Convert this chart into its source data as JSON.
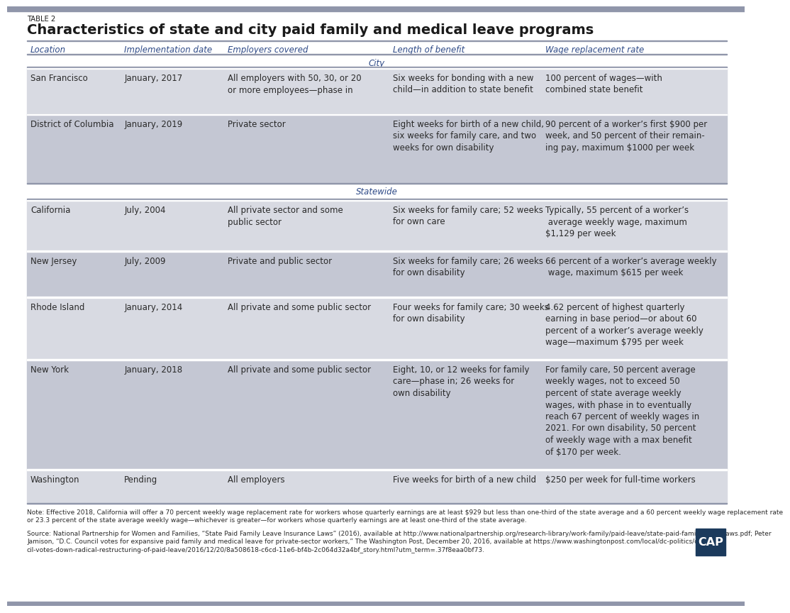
{
  "table_label": "TABLE 2",
  "title": "Characteristics of state and city paid family and medical leave programs",
  "columns": [
    "Location",
    "Implementation date",
    "Employers covered",
    "Length of benefit",
    "Wage replacement rate"
  ],
  "header_color": "#2E4A87",
  "section_city_label": "City",
  "section_statewide_label": "Statewide",
  "section_label_color": "#2E4A87",
  "rows": [
    {
      "section": "City",
      "location": "San Francisco",
      "date": "January, 2017",
      "employers": "All employers with 50, 30, or 20\nor more employees—phase in",
      "length": "Six weeks for bonding with a new\nchild—in addition to state benefit",
      "wage": "100 percent of wages—with\ncombined state benefit",
      "bg": "#D8DAE2"
    },
    {
      "section": "City",
      "location": "District of Columbia",
      "date": "January, 2019",
      "employers": "Private sector",
      "length": "Eight weeks for birth of a new child,\nsix weeks for family care, and two\nweeks for own disability",
      "wage": "90 percent of a worker’s first $900 per\nweek, and 50 percent of their remain-\ning pay, maximum $1000 per week",
      "bg": "#C4C7D3"
    },
    {
      "section": "Statewide",
      "location": "California",
      "date": "July, 2004",
      "employers": "All private sector and some\npublic sector",
      "length": "Six weeks for family care; 52 weeks\nfor own care",
      "wage": "Typically, 55 percent of a worker’s\n average weekly wage, maximum\n$1,129 per week",
      "bg": "#D8DAE2"
    },
    {
      "section": "Statewide",
      "location": "New Jersey",
      "date": "July, 2009",
      "employers": "Private and public sector",
      "length": "Six weeks for family care; 26 weeks\nfor own disability",
      "wage": "66 percent of a worker’s average weekly\n wage, maximum $615 per week",
      "bg": "#C4C7D3"
    },
    {
      "section": "Statewide",
      "location": "Rhode Island",
      "date": "January, 2014",
      "employers": "All private and some public sector",
      "length": "Four weeks for family care; 30 weeks\nfor own disability",
      "wage": "4.62 percent of highest quarterly\nearning in base period—or about 60\npercent of a worker’s average weekly\nwage—maximum $795 per week",
      "bg": "#D8DAE2"
    },
    {
      "section": "Statewide",
      "location": "New York",
      "date": "January, 2018",
      "employers": "All private and some public sector",
      "length": "Eight, 10, or 12 weeks for family\ncare—phase in; 26 weeks for\nown disability",
      "wage": "For family care, 50 percent average\nweekly wages, not to exceed 50\npercent of state average weekly\nwages, with phase in to eventually\nreach 67 percent of weekly wages in\n2021. For own disability, 50 percent\nof weekly wage with a max benefit\nof $170 per week.",
      "bg": "#C4C7D3"
    },
    {
      "section": "Statewide",
      "location": "Washington",
      "date": "Pending",
      "employers": "All employers",
      "length": "Five weeks for birth of a new child",
      "wage": "$250 per week for full-time workers",
      "bg": "#D8DAE2"
    }
  ],
  "note_text": "Note: Effective 2018, California will offer a 70 percent weekly wage replacement rate for workers whose quarterly earnings are at least $929 but less than one-third of the state average and a 60 percent weekly wage replacement rate\nor 23.3 percent of the state average weekly wage—whichever is greater—for workers whose quarterly earnings are at least one-third of the state average.",
  "source_text": "Source: National Partnership for Women and Families, “State Paid Family Leave Insurance Laws” (2016), available at http://www.nationalpartnership.org/research-library/work-family/paid-leave/state-paid-family-leave-laws.pdf; Peter\nJamison, “D.C. Council votes for expansive paid family and medical leave for private-sector workers,” The Washington Post, December 20, 2016, available at https://www.washingtonpost.com/local/dc-politics/coun-\ncil-votes-down-radical-restructuring-of-paid-leave/2016/12/20/8a508618-c6cd-11e6-bf4b-2c064d32a4bf_story.html?utm_term=.37f8eaa0bf73.",
  "cap_bg": "#1B3A5C",
  "cap_text": "CAP",
  "top_bar_color": "#9096AA",
  "bottom_bar_color": "#9096AA",
  "bg_color": "#FFFFFF",
  "text_color": "#2a2a2a"
}
